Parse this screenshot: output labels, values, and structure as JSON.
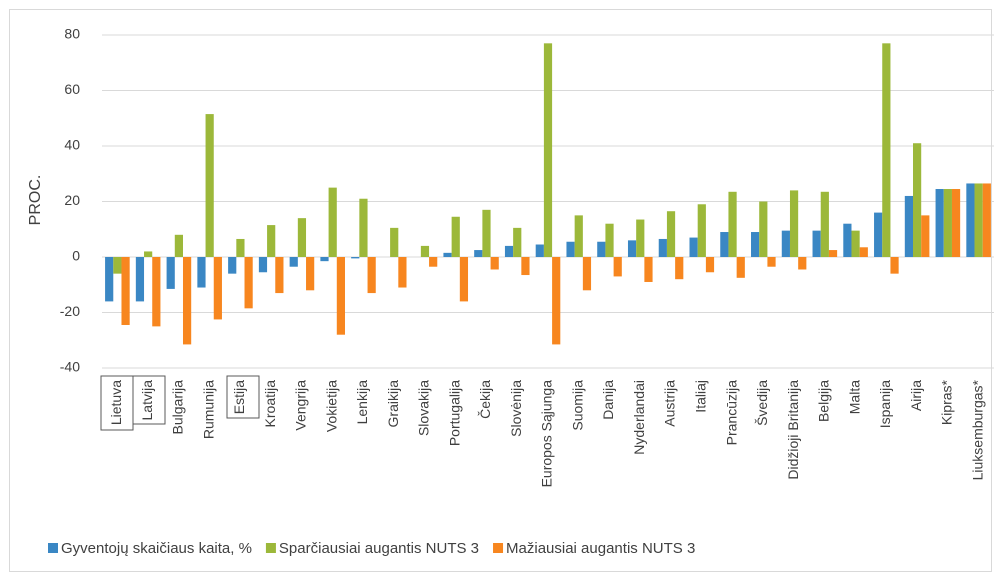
{
  "chart_data": {
    "type": "bar",
    "y_label": "PROC.",
    "categories": [
      "Lietuva",
      "Latvija",
      "Bulgarija",
      "Rumunija",
      "Estija",
      "Kroatija",
      "Vengrija",
      "Vokietija",
      "Lenkija",
      "Graikija",
      "Slovakija",
      "Portugalija",
      "Čekija",
      "Slovėnija",
      "Europos Sąjunga",
      "Suomija",
      "Danija",
      "Nyderlandai",
      "Austrija",
      "Italiaj",
      "Prancūzija",
      "Švedija",
      "Didžioji Britanija",
      "Belgija",
      "Malta",
      "Ispanija",
      "Airija",
      "Kipras*",
      "Liuksemburgas*"
    ],
    "series": [
      {
        "name": "Gyventojų skaičiaus kaita, %",
        "color": "#3a87c4",
        "values": [
          -16,
          -16,
          -11.5,
          -11,
          -6,
          -5.5,
          -3.5,
          -1.5,
          -0.5,
          0,
          0,
          1.5,
          2.5,
          4,
          4.5,
          5.5,
          5.5,
          6,
          6.5,
          7,
          9,
          9,
          9.5,
          9.5,
          12,
          16,
          22,
          24.5,
          26.5
        ]
      },
      {
        "name": "Sparčiausiai augantis NUTS 3",
        "color": "#9cb83a",
        "values": [
          -6,
          2,
          8,
          51.5,
          6.5,
          11.5,
          14,
          25,
          21,
          10.5,
          4,
          14.5,
          17,
          10.5,
          77,
          15,
          12,
          13.5,
          16.5,
          19,
          23.5,
          20,
          24,
          23.5,
          9.5,
          77,
          41,
          24.5,
          26.5
        ]
      },
      {
        "name": "Mažiausiai augantis NUTS 3",
        "color": "#f7861f",
        "values": [
          -24.5,
          -25,
          -31.5,
          -22.5,
          -18.5,
          -13,
          -12,
          -28,
          -13,
          -11,
          -3.5,
          -16,
          -4.5,
          -6.5,
          -31.5,
          -12,
          -7,
          -9,
          -8,
          -5.5,
          -7.5,
          -3.5,
          -4.5,
          2.5,
          3.5,
          -6,
          15,
          24.5,
          26.5
        ]
      }
    ],
    "ylim": [
      -40,
      80
    ],
    "yticks": [
      -40,
      -20,
      0,
      20,
      40,
      60,
      80
    ],
    "grid": true
  }
}
